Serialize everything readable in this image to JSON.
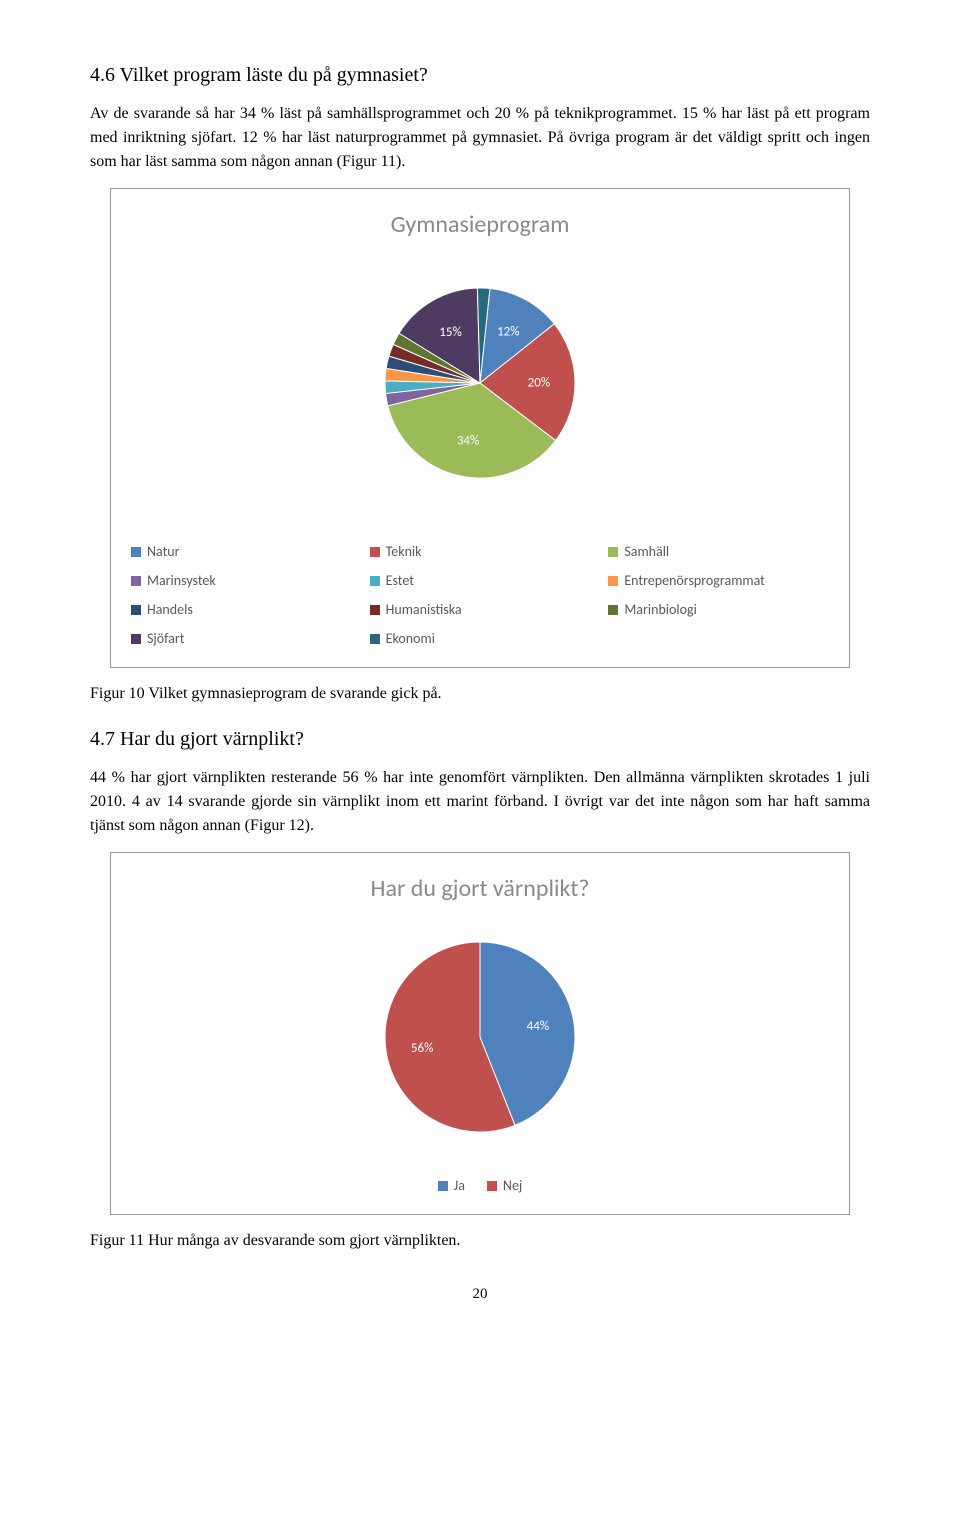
{
  "section1": {
    "heading": "4.6 Vilket program läste du på gymnasiet?",
    "paragraph": "Av de svarande så har 34 % läst på samhällsprogrammet och 20 % på teknikprogrammet. 15 % har läst på ett program med inriktning sjöfart. 12 % har läst naturprogrammet på gymnasiet. På övriga program är det väldigt spritt och ingen som har läst samma som någon annan (Figur 11)."
  },
  "chart1": {
    "title": "Gymnasieprogram",
    "type": "pie",
    "background_color": "#ffffff",
    "border_color": "#999999",
    "title_color": "#8a8a8a",
    "label_color": "#ffffff",
    "slices": [
      {
        "label": "Natur",
        "pct": 12,
        "color": "#4f81bd",
        "show": "12%"
      },
      {
        "label": "Teknik",
        "pct": 20,
        "color": "#c0504d",
        "show": "20%"
      },
      {
        "label": "Samhäll",
        "pct": 34,
        "color": "#9bbb59",
        "show": "34%"
      },
      {
        "label": "Marinsystek",
        "pct": 2,
        "color": "#8064a2",
        "show": "2%"
      },
      {
        "label": "Estet",
        "pct": 2,
        "color": "#4bacc6",
        "show": "2%"
      },
      {
        "label": "Entrepenörsprogrammat",
        "pct": 2,
        "color": "#f79646",
        "show": "2%"
      },
      {
        "label": "Handels",
        "pct": 2,
        "color": "#2c4d75",
        "show": "2%"
      },
      {
        "label": "Humanistiska",
        "pct": 2,
        "color": "#772c2a",
        "show": "2%"
      },
      {
        "label": "Marinbiologi",
        "pct": 2,
        "color": "#5f7530",
        "show": "2%"
      },
      {
        "label": "Sjöfart",
        "pct": 15,
        "color": "#4d3b62",
        "show": "15%"
      },
      {
        "label": "Ekonomi",
        "pct": 2,
        "color": "#276a7c",
        "show": "2%"
      }
    ],
    "caption": "Figur 10 Vilket gymnasieprogram de svarande gick på."
  },
  "section2": {
    "heading": "4.7 Har du gjort värnplikt?",
    "paragraph": "44 % har gjort värnplikten resterande 56 % har inte genomfört värnplikten. Den allmänna värnplikten skrotades 1 juli 2010. 4 av 14 svarande gjorde sin värnplikt inom ett marint förband. I övrigt var det inte någon som har haft samma tjänst som någon annan (Figur 12)."
  },
  "chart2": {
    "title": "Har du gjort värnplikt?",
    "type": "pie",
    "background_color": "#ffffff",
    "border_color": "#999999",
    "title_color": "#8a8a8a",
    "label_color": "#ffffff",
    "slices": [
      {
        "label": "Ja",
        "pct": 44,
        "color": "#4f81bd",
        "show": "44%"
      },
      {
        "label": "Nej",
        "pct": 56,
        "color": "#c0504d",
        "show": "56%"
      }
    ],
    "caption": "Figur 11 Hur många av desvarande som gjort värnplikten."
  },
  "page_number": "20"
}
